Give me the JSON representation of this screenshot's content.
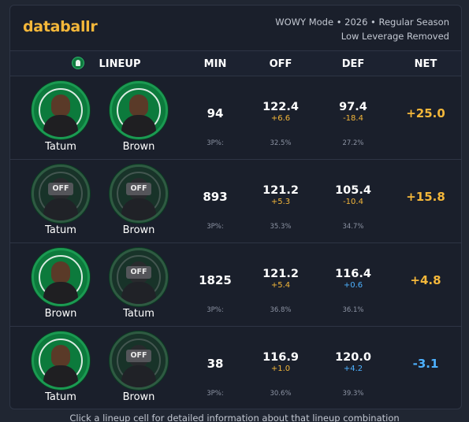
{
  "brand": {
    "logo": "databallr"
  },
  "meta": {
    "line1": "WOWY Mode • 2026 • Regular Season",
    "line2": "Low Leverage Removed"
  },
  "columns": {
    "lineup": "LINEUP",
    "min": "MIN",
    "off": "OFF",
    "def": "DEF",
    "net": "NET"
  },
  "labels": {
    "off_badge": "OFF",
    "three_pt": "3P%:"
  },
  "colors": {
    "accent": "#f4b73a",
    "positive": "#f4b73a",
    "negative": "#4db1ff",
    "celtics_green": "#0c7a3c"
  },
  "rows": [
    {
      "players": [
        {
          "name": "Tatum",
          "status": "on"
        },
        {
          "name": "Brown",
          "status": "on"
        }
      ],
      "min": "94",
      "off": {
        "value": "122.4",
        "delta": "+6.6",
        "tp": "32.5%"
      },
      "def": {
        "value": "97.4",
        "delta": "-18.4",
        "tp": "27.2%"
      },
      "net": "+25.0"
    },
    {
      "players": [
        {
          "name": "Tatum",
          "status": "off"
        },
        {
          "name": "Brown",
          "status": "off"
        }
      ],
      "min": "893",
      "off": {
        "value": "121.2",
        "delta": "+5.3",
        "tp": "35.3%"
      },
      "def": {
        "value": "105.4",
        "delta": "-10.4",
        "tp": "34.7%"
      },
      "net": "+15.8"
    },
    {
      "players": [
        {
          "name": "Brown",
          "status": "on"
        },
        {
          "name": "Tatum",
          "status": "off"
        }
      ],
      "min": "1825",
      "off": {
        "value": "121.2",
        "delta": "+5.4",
        "tp": "36.8%"
      },
      "def": {
        "value": "116.4",
        "delta": "+0.6",
        "tp": "36.1%"
      },
      "net": "+4.8"
    },
    {
      "players": [
        {
          "name": "Tatum",
          "status": "on"
        },
        {
          "name": "Brown",
          "status": "off"
        }
      ],
      "min": "38",
      "off": {
        "value": "116.9",
        "delta": "+1.0",
        "tp": "30.6%"
      },
      "def": {
        "value": "120.0",
        "delta": "+4.2",
        "tp": "39.3%"
      },
      "net": "-3.1"
    }
  ],
  "footer": {
    "hint": "Click a lineup cell for detailed information about that lineup combination"
  }
}
